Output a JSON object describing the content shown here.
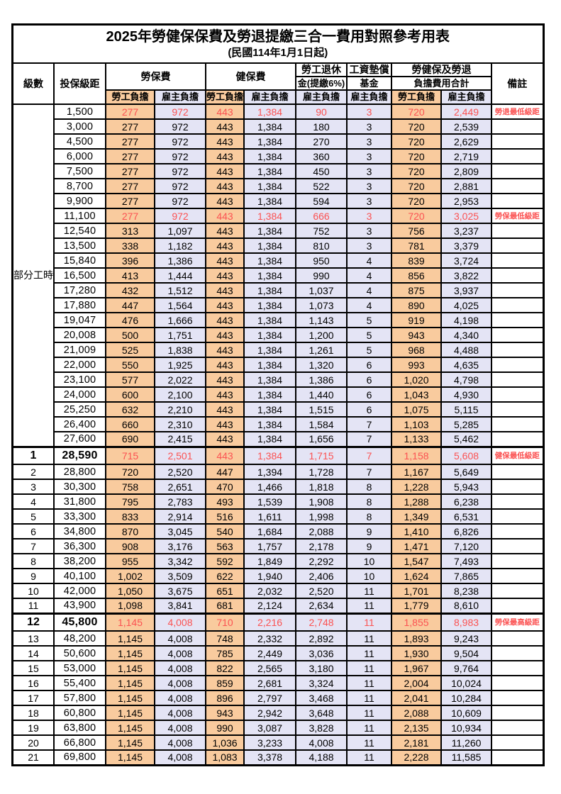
{
  "title": {
    "line1": "2025年勞健保保費及勞退提繳三合一費用對照參考用表",
    "line2": "(民國114年1月1日起)"
  },
  "colors": {
    "worker_bg": "#F9CB9E",
    "employer_bg": "#E4E4F5",
    "highlight_red": "#FB5252",
    "border": "#000000"
  },
  "header": {
    "level": "級數",
    "bracket": "投保級距",
    "labor_insurance": "勞保費",
    "health_insurance": "健保費",
    "pension_line1": "勞工退休",
    "pension_line2": "金(提繳6%)",
    "wage_fund_line1": "工資墊償",
    "wage_fund_line2": "基金",
    "total_line1": "勞健保及勞退",
    "total_line2": "負擔費用合計",
    "worker": "勞工負擔",
    "employer": "雇主負擔",
    "note": "備註"
  },
  "table": {
    "part_time": {
      "label": "部分工時",
      "rowspan": 23
    },
    "rows": [
      {
        "level": null,
        "bracket": "1,500",
        "v": [
          "277",
          "972",
          "443",
          "1,384",
          "90",
          "3",
          "720",
          "2,449"
        ],
        "note": "勞退最低級距",
        "red": true,
        "special": false
      },
      {
        "level": null,
        "bracket": "3,000",
        "v": [
          "277",
          "972",
          "443",
          "1,384",
          "180",
          "3",
          "720",
          "2,539"
        ],
        "note": "",
        "red": false,
        "special": false
      },
      {
        "level": null,
        "bracket": "4,500",
        "v": [
          "277",
          "972",
          "443",
          "1,384",
          "270",
          "3",
          "720",
          "2,629"
        ],
        "note": "",
        "red": false,
        "special": false
      },
      {
        "level": null,
        "bracket": "6,000",
        "v": [
          "277",
          "972",
          "443",
          "1,384",
          "360",
          "3",
          "720",
          "2,719"
        ],
        "note": "",
        "red": false,
        "special": false
      },
      {
        "level": null,
        "bracket": "7,500",
        "v": [
          "277",
          "972",
          "443",
          "1,384",
          "450",
          "3",
          "720",
          "2,809"
        ],
        "note": "",
        "red": false,
        "special": false
      },
      {
        "level": null,
        "bracket": "8,700",
        "v": [
          "277",
          "972",
          "443",
          "1,384",
          "522",
          "3",
          "720",
          "2,881"
        ],
        "note": "",
        "red": false,
        "special": false
      },
      {
        "level": null,
        "bracket": "9,900",
        "v": [
          "277",
          "972",
          "443",
          "1,384",
          "594",
          "3",
          "720",
          "2,953"
        ],
        "note": "",
        "red": false,
        "special": false
      },
      {
        "level": null,
        "bracket": "11,100",
        "v": [
          "277",
          "972",
          "443",
          "1,384",
          "666",
          "3",
          "720",
          "3,025"
        ],
        "note": "勞保最低級距",
        "red": true,
        "special": false
      },
      {
        "level": null,
        "bracket": "12,540",
        "v": [
          "313",
          "1,097",
          "443",
          "1,384",
          "752",
          "3",
          "756",
          "3,237"
        ],
        "note": "",
        "red": false,
        "special": false
      },
      {
        "level": null,
        "bracket": "13,500",
        "v": [
          "338",
          "1,182",
          "443",
          "1,384",
          "810",
          "3",
          "781",
          "3,379"
        ],
        "note": "",
        "red": false,
        "special": false
      },
      {
        "level": null,
        "bracket": "15,840",
        "v": [
          "396",
          "1,386",
          "443",
          "1,384",
          "950",
          "4",
          "839",
          "3,724"
        ],
        "note": "",
        "red": false,
        "special": false
      },
      {
        "level": null,
        "bracket": "16,500",
        "v": [
          "413",
          "1,444",
          "443",
          "1,384",
          "990",
          "4",
          "856",
          "3,822"
        ],
        "note": "",
        "red": false,
        "special": false
      },
      {
        "level": null,
        "bracket": "17,280",
        "v": [
          "432",
          "1,512",
          "443",
          "1,384",
          "1,037",
          "4",
          "875",
          "3,937"
        ],
        "note": "",
        "red": false,
        "special": false
      },
      {
        "level": null,
        "bracket": "17,880",
        "v": [
          "447",
          "1,564",
          "443",
          "1,384",
          "1,073",
          "4",
          "890",
          "4,025"
        ],
        "note": "",
        "red": false,
        "special": false
      },
      {
        "level": null,
        "bracket": "19,047",
        "v": [
          "476",
          "1,666",
          "443",
          "1,384",
          "1,143",
          "5",
          "919",
          "4,198"
        ],
        "note": "",
        "red": false,
        "special": false
      },
      {
        "level": null,
        "bracket": "20,008",
        "v": [
          "500",
          "1,751",
          "443",
          "1,384",
          "1,200",
          "5",
          "943",
          "4,340"
        ],
        "note": "",
        "red": false,
        "special": false
      },
      {
        "level": null,
        "bracket": "21,009",
        "v": [
          "525",
          "1,838",
          "443",
          "1,384",
          "1,261",
          "5",
          "968",
          "4,488"
        ],
        "note": "",
        "red": false,
        "special": false
      },
      {
        "level": null,
        "bracket": "22,000",
        "v": [
          "550",
          "1,925",
          "443",
          "1,384",
          "1,320",
          "6",
          "993",
          "4,635"
        ],
        "note": "",
        "red": false,
        "special": false
      },
      {
        "level": null,
        "bracket": "23,100",
        "v": [
          "577",
          "2,022",
          "443",
          "1,384",
          "1,386",
          "6",
          "1,020",
          "4,798"
        ],
        "note": "",
        "red": false,
        "special": false
      },
      {
        "level": null,
        "bracket": "24,000",
        "v": [
          "600",
          "2,100",
          "443",
          "1,384",
          "1,440",
          "6",
          "1,043",
          "4,930"
        ],
        "note": "",
        "red": false,
        "special": false
      },
      {
        "level": null,
        "bracket": "25,250",
        "v": [
          "632",
          "2,210",
          "443",
          "1,384",
          "1,515",
          "6",
          "1,075",
          "5,115"
        ],
        "note": "",
        "red": false,
        "special": false
      },
      {
        "level": null,
        "bracket": "26,400",
        "v": [
          "660",
          "2,310",
          "443",
          "1,384",
          "1,584",
          "7",
          "1,103",
          "5,285"
        ],
        "note": "",
        "red": false,
        "special": false
      },
      {
        "level": null,
        "bracket": "27,600",
        "v": [
          "690",
          "2,415",
          "443",
          "1,384",
          "1,656",
          "7",
          "1,133",
          "5,462"
        ],
        "note": "",
        "red": false,
        "special": false
      },
      {
        "level": "1",
        "bracket": "28,590",
        "v": [
          "715",
          "2,501",
          "443",
          "1,384",
          "1,715",
          "7",
          "1,158",
          "5,608"
        ],
        "note": "健保最低級距",
        "red": true,
        "special": true
      },
      {
        "level": "2",
        "bracket": "28,800",
        "v": [
          "720",
          "2,520",
          "447",
          "1,394",
          "1,728",
          "7",
          "1,167",
          "5,649"
        ],
        "note": "",
        "red": false,
        "special": false
      },
      {
        "level": "3",
        "bracket": "30,300",
        "v": [
          "758",
          "2,651",
          "470",
          "1,466",
          "1,818",
          "8",
          "1,228",
          "5,943"
        ],
        "note": "",
        "red": false,
        "special": false
      },
      {
        "level": "4",
        "bracket": "31,800",
        "v": [
          "795",
          "2,783",
          "493",
          "1,539",
          "1,908",
          "8",
          "1,288",
          "6,238"
        ],
        "note": "",
        "red": false,
        "special": false
      },
      {
        "level": "5",
        "bracket": "33,300",
        "v": [
          "833",
          "2,914",
          "516",
          "1,611",
          "1,998",
          "8",
          "1,349",
          "6,531"
        ],
        "note": "",
        "red": false,
        "special": false
      },
      {
        "level": "6",
        "bracket": "34,800",
        "v": [
          "870",
          "3,045",
          "540",
          "1,684",
          "2,088",
          "9",
          "1,410",
          "6,826"
        ],
        "note": "",
        "red": false,
        "special": false
      },
      {
        "level": "7",
        "bracket": "36,300",
        "v": [
          "908",
          "3,176",
          "563",
          "1,757",
          "2,178",
          "9",
          "1,471",
          "7,120"
        ],
        "note": "",
        "red": false,
        "special": false
      },
      {
        "level": "8",
        "bracket": "38,200",
        "v": [
          "955",
          "3,342",
          "592",
          "1,849",
          "2,292",
          "10",
          "1,547",
          "7,493"
        ],
        "note": "",
        "red": false,
        "special": false
      },
      {
        "level": "9",
        "bracket": "40,100",
        "v": [
          "1,002",
          "3,509",
          "622",
          "1,940",
          "2,406",
          "10",
          "1,624",
          "7,865"
        ],
        "note": "",
        "red": false,
        "special": false
      },
      {
        "level": "10",
        "bracket": "42,000",
        "v": [
          "1,050",
          "3,675",
          "651",
          "2,032",
          "2,520",
          "11",
          "1,701",
          "8,238"
        ],
        "note": "",
        "red": false,
        "special": false
      },
      {
        "level": "11",
        "bracket": "43,900",
        "v": [
          "1,098",
          "3,841",
          "681",
          "2,124",
          "2,634",
          "11",
          "1,779",
          "8,610"
        ],
        "note": "",
        "red": false,
        "special": false
      },
      {
        "level": "12",
        "bracket": "45,800",
        "v": [
          "1,145",
          "4,008",
          "710",
          "2,216",
          "2,748",
          "11",
          "1,855",
          "8,983"
        ],
        "note": "勞保最高級距",
        "red": true,
        "special": true
      },
      {
        "level": "13",
        "bracket": "48,200",
        "v": [
          "1,145",
          "4,008",
          "748",
          "2,332",
          "2,892",
          "11",
          "1,893",
          "9,243"
        ],
        "note": "",
        "red": false,
        "special": false
      },
      {
        "level": "14",
        "bracket": "50,600",
        "v": [
          "1,145",
          "4,008",
          "785",
          "2,449",
          "3,036",
          "11",
          "1,930",
          "9,504"
        ],
        "note": "",
        "red": false,
        "special": false
      },
      {
        "level": "15",
        "bracket": "53,000",
        "v": [
          "1,145",
          "4,008",
          "822",
          "2,565",
          "3,180",
          "11",
          "1,967",
          "9,764"
        ],
        "note": "",
        "red": false,
        "special": false
      },
      {
        "level": "16",
        "bracket": "55,400",
        "v": [
          "1,145",
          "4,008",
          "859",
          "2,681",
          "3,324",
          "11",
          "2,004",
          "10,024"
        ],
        "note": "",
        "red": false,
        "special": false
      },
      {
        "level": "17",
        "bracket": "57,800",
        "v": [
          "1,145",
          "4,008",
          "896",
          "2,797",
          "3,468",
          "11",
          "2,041",
          "10,284"
        ],
        "note": "",
        "red": false,
        "special": false
      },
      {
        "level": "18",
        "bracket": "60,800",
        "v": [
          "1,145",
          "4,008",
          "943",
          "2,942",
          "3,648",
          "11",
          "2,088",
          "10,609"
        ],
        "note": "",
        "red": false,
        "special": false
      },
      {
        "level": "19",
        "bracket": "63,800",
        "v": [
          "1,145",
          "4,008",
          "990",
          "3,087",
          "3,828",
          "11",
          "2,135",
          "10,934"
        ],
        "note": "",
        "red": false,
        "special": false
      },
      {
        "level": "20",
        "bracket": "66,800",
        "v": [
          "1,145",
          "4,008",
          "1,036",
          "3,233",
          "4,008",
          "11",
          "2,181",
          "11,260"
        ],
        "note": "",
        "red": false,
        "special": false
      },
      {
        "level": "21",
        "bracket": "69,800",
        "v": [
          "1,145",
          "4,008",
          "1,083",
          "3,378",
          "4,188",
          "11",
          "2,228",
          "11,585"
        ],
        "note": "",
        "red": false,
        "special": false
      }
    ]
  }
}
